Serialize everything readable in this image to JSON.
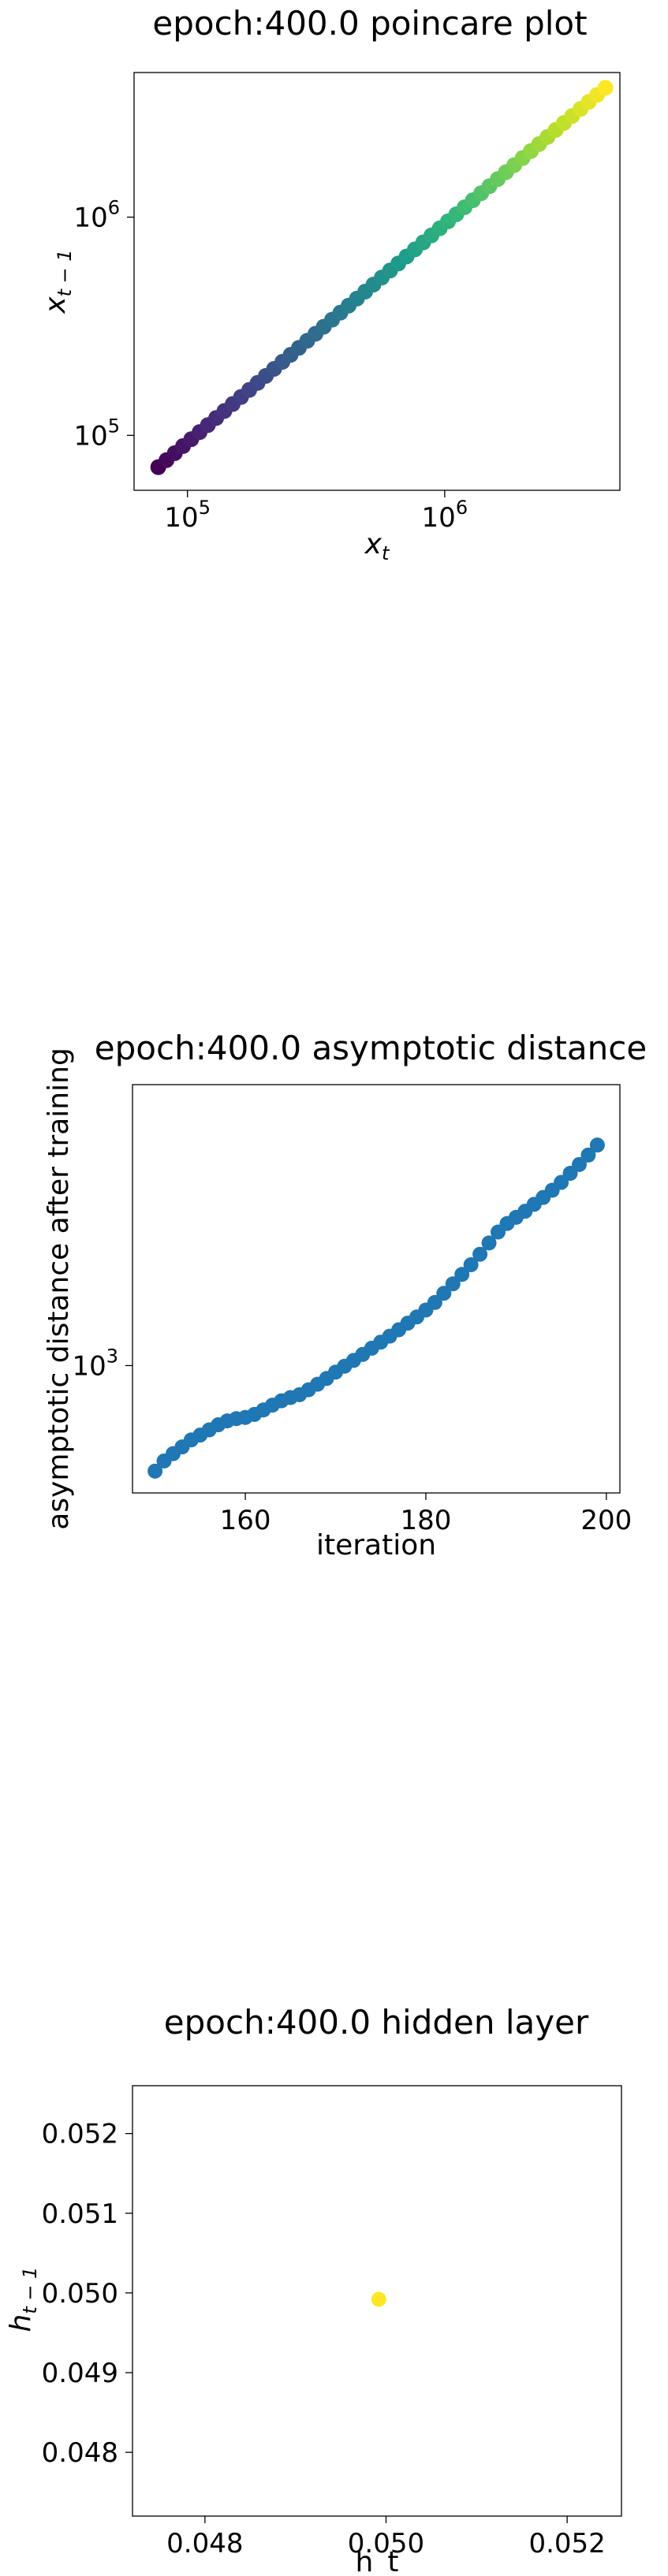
{
  "chart_data": [
    {
      "type": "scatter",
      "title": "epoch:400.0 poincare plot",
      "xlabel": "x_t",
      "ylabel": "x_{t−1}",
      "xscale": "log",
      "yscale": "log",
      "xlim": [
        62000,
        4800000
      ],
      "ylim": [
        56000,
        4600000
      ],
      "xticks": [
        100000,
        1000000
      ],
      "yticks": [
        100000,
        1000000
      ],
      "xtick_labels": [
        {
          "base": "10",
          "exp": "5"
        },
        {
          "base": "10",
          "exp": "6"
        }
      ],
      "ytick_labels": [
        {
          "base": "10",
          "exp": "5"
        },
        {
          "base": "10",
          "exp": "6"
        }
      ],
      "colormap": "viridis",
      "series": [
        {
          "x": [
            77000,
            82900,
            89300,
            96100,
            103500,
            111500,
            120100,
            129300,
            139200,
            149900,
            161500,
            173900,
            187300,
            201700,
            217200,
            233900,
            251900,
            271300,
            292200,
            314700,
            338900,
            365000,
            393100,
            423300,
            455900,
            491000,
            528800,
            569500,
            613300,
            660500,
            711300,
            766000,
            825000,
            888500,
            956900,
            1030500,
            1109800,
            1195200,
            1287200,
            1386300,
            1493000,
            1607900,
            1731600,
            1864900,
            2008400,
            2162900,
            2329400,
            2508600,
            2701700,
            2909600,
            3133500,
            3374600,
            3634300,
            3913900,
            4215100
          ],
          "y": [
            71500,
            77000,
            82900,
            89300,
            96100,
            103500,
            111500,
            120100,
            129300,
            139200,
            149900,
            161500,
            173900,
            187300,
            201700,
            217200,
            233900,
            251900,
            271300,
            292200,
            314700,
            338900,
            365000,
            393100,
            423300,
            455900,
            491000,
            528800,
            569500,
            613300,
            660500,
            711300,
            766000,
            825000,
            888500,
            956900,
            1030500,
            1109800,
            1195200,
            1287200,
            1386300,
            1493000,
            1607900,
            1731600,
            1864900,
            2008400,
            2162900,
            2329400,
            2508600,
            2701700,
            2909600,
            3133500,
            3374600,
            3634300,
            3913900
          ]
        }
      ]
    },
    {
      "type": "scatter",
      "title": "epoch:400.0 asymptotic distance",
      "xlabel": "iteration",
      "ylabel": "asymptotic distance after training",
      "xscale": "linear",
      "yscale": "log",
      "xlim": [
        147.5,
        201.5
      ],
      "ylim": [
        675,
        2380
      ],
      "xticks": [
        160,
        180,
        200
      ],
      "xtick_labels": [
        "160",
        "180",
        "200"
      ],
      "yticks": [
        1000
      ],
      "ytick_labels": [
        {
          "base": "10",
          "exp": "3"
        }
      ],
      "color": "#1f77b4",
      "series": [
        {
          "x": [
            150,
            151,
            152,
            153,
            154,
            155,
            156,
            157,
            158,
            159,
            160,
            161,
            162,
            163,
            164,
            165,
            166,
            167,
            168,
            169,
            170,
            171,
            172,
            173,
            174,
            175,
            176,
            177,
            178,
            179,
            180,
            181,
            182,
            183,
            184,
            185,
            186,
            187,
            188,
            189,
            190,
            191,
            192,
            193,
            194,
            195,
            196,
            197,
            198,
            199
          ],
          "y": [
            722,
            745,
            762,
            778,
            795,
            807,
            820,
            833,
            843,
            849,
            852,
            860,
            872,
            885,
            897,
            906,
            914,
            928,
            944,
            961,
            980,
            998,
            1016,
            1035,
            1055,
            1075,
            1095,
            1117,
            1140,
            1162,
            1187,
            1215,
            1250,
            1287,
            1325,
            1365,
            1410,
            1460,
            1510,
            1550,
            1580,
            1610,
            1645,
            1680,
            1718,
            1760,
            1810,
            1860,
            1915,
            1975
          ]
        }
      ]
    },
    {
      "type": "scatter",
      "title": "epoch:400.0 hidden layer",
      "xlabel": "h_t",
      "ylabel": "h_{t−1}",
      "xscale": "linear",
      "yscale": "linear",
      "xlim": [
        0.0472,
        0.0526
      ],
      "ylim": [
        0.0472,
        0.0526
      ],
      "xticks": [
        0.048,
        0.05,
        0.052
      ],
      "xtick_labels": [
        "0.048",
        "0.050",
        "0.052"
      ],
      "yticks": [
        0.048,
        0.049,
        0.05,
        0.051,
        0.052
      ],
      "ytick_labels": [
        "0.048",
        "0.049",
        "0.050",
        "0.051",
        "0.052"
      ],
      "color": "#fde725",
      "series": [
        {
          "x": [
            0.04992
          ],
          "y": [
            0.04992
          ]
        }
      ]
    }
  ]
}
